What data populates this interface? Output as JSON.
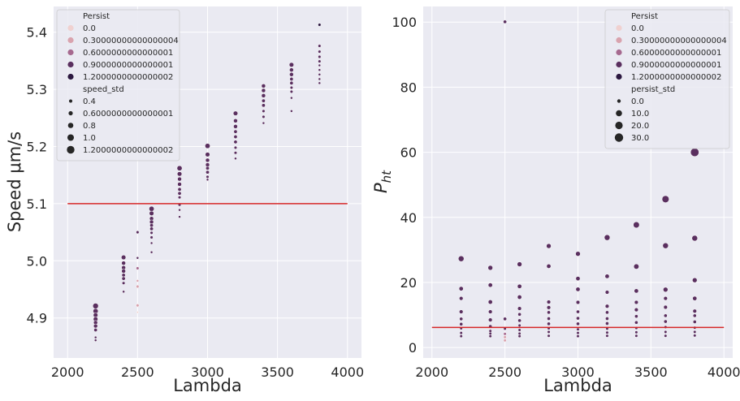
{
  "chart_data": [
    {
      "type": "scatter",
      "xlabel": "Lambda",
      "ylabel": "Speed μm/s",
      "xlim": [
        1900,
        4100
      ],
      "ylim": [
        4.83,
        5.445
      ],
      "xticks": [
        "2000",
        "2500",
        "3000",
        "3500",
        "4000"
      ],
      "yticks": [
        "4.9",
        "5.0",
        "5.1",
        "5.2",
        "5.3",
        "5.4"
      ],
      "xtick_values": [
        2000,
        2500,
        3000,
        3500,
        4000
      ],
      "ytick_values": [
        4.9,
        5.0,
        5.1,
        5.2,
        5.3,
        5.4
      ],
      "grid": true,
      "legend_position": "upper-left",
      "hue_title": "Persist",
      "hue_levels": [
        "0.0",
        "0.30000000000000004",
        "0.6000000000000001",
        "0.9000000000000001",
        "1.2000000000000002"
      ],
      "size_title": "speed_std",
      "size_levels": [
        "0.4",
        "0.6000000000000001",
        "0.8",
        "1.0",
        "1.2000000000000002"
      ],
      "reference_line": {
        "y": 5.1,
        "x_range": [
          2000,
          4000
        ],
        "color": "#d62728"
      },
      "groups": [
        {
          "x": 2200,
          "points": [
            [
              4.921,
              0.9,
              1.1
            ],
            [
              4.912,
              0.9,
              1.0
            ],
            [
              4.905,
              0.9,
              0.9
            ],
            [
              4.898,
              0.9,
              0.9
            ],
            [
              4.892,
              0.9,
              0.8
            ],
            [
              4.886,
              0.9,
              0.8
            ],
            [
              4.879,
              0.9,
              0.7
            ],
            [
              4.866,
              0.9,
              0.5
            ],
            [
              4.861,
              0.9,
              0.5
            ]
          ]
        },
        {
          "x": 2400,
          "points": [
            [
              5.006,
              0.9,
              0.9
            ],
            [
              4.996,
              0.9,
              0.8
            ],
            [
              4.988,
              0.9,
              0.8
            ],
            [
              4.982,
              0.9,
              0.8
            ],
            [
              4.975,
              0.9,
              0.7
            ],
            [
              4.969,
              0.9,
              0.7
            ],
            [
              4.961,
              0.9,
              0.6
            ],
            [
              4.946,
              0.9,
              0.5
            ]
          ]
        },
        {
          "x": 2500,
          "points": [
            [
              5.05,
              0.9,
              0.6
            ],
            [
              5.005,
              0.9,
              0.5
            ],
            [
              4.987,
              0.6,
              0.6
            ],
            [
              4.965,
              0.3,
              0.5
            ],
            [
              4.955,
              0.3,
              0.6
            ],
            [
              4.922,
              0.3,
              0.6
            ],
            [
              4.91,
              0.0,
              0.4
            ]
          ]
        },
        {
          "x": 2600,
          "points": [
            [
              5.091,
              0.9,
              1.0
            ],
            [
              5.083,
              0.9,
              0.9
            ],
            [
              5.074,
              0.9,
              0.8
            ],
            [
              5.068,
              0.9,
              0.8
            ],
            [
              5.062,
              0.9,
              0.7
            ],
            [
              5.056,
              0.9,
              0.7
            ],
            [
              5.049,
              0.9,
              0.6
            ],
            [
              5.041,
              0.9,
              0.6
            ],
            [
              5.031,
              0.9,
              0.5
            ],
            [
              5.015,
              0.9,
              0.5
            ]
          ]
        },
        {
          "x": 2800,
          "points": [
            [
              5.162,
              0.9,
              1.0
            ],
            [
              5.152,
              0.9,
              0.9
            ],
            [
              5.143,
              0.9,
              0.8
            ],
            [
              5.134,
              0.9,
              0.8
            ],
            [
              5.125,
              0.9,
              0.7
            ],
            [
              5.118,
              0.9,
              0.7
            ],
            [
              5.111,
              0.9,
              0.6
            ],
            [
              5.098,
              0.9,
              0.6
            ],
            [
              5.089,
              0.9,
              0.5
            ],
            [
              5.077,
              0.9,
              0.5
            ]
          ]
        },
        {
          "x": 3000,
          "points": [
            [
              5.201,
              0.9,
              1.0
            ],
            [
              5.186,
              0.9,
              0.9
            ],
            [
              5.176,
              0.9,
              0.8
            ],
            [
              5.168,
              0.9,
              0.8
            ],
            [
              5.162,
              0.9,
              0.7
            ],
            [
              5.155,
              0.9,
              0.7
            ],
            [
              5.147,
              0.9,
              0.6
            ],
            [
              5.142,
              0.9,
              0.5
            ]
          ]
        },
        {
          "x": 3200,
          "points": [
            [
              5.258,
              0.9,
              0.9
            ],
            [
              5.245,
              0.9,
              0.8
            ],
            [
              5.235,
              0.9,
              0.8
            ],
            [
              5.226,
              0.9,
              0.7
            ],
            [
              5.217,
              0.9,
              0.7
            ],
            [
              5.208,
              0.9,
              0.7
            ],
            [
              5.198,
              0.9,
              0.6
            ],
            [
              5.189,
              0.9,
              0.6
            ],
            [
              5.179,
              0.9,
              0.5
            ]
          ]
        },
        {
          "x": 3400,
          "points": [
            [
              5.306,
              0.9,
              0.8
            ],
            [
              5.298,
              0.9,
              0.8
            ],
            [
              5.289,
              0.9,
              0.8
            ],
            [
              5.28,
              0.9,
              0.7
            ],
            [
              5.272,
              0.9,
              0.7
            ],
            [
              5.262,
              0.9,
              0.6
            ],
            [
              5.252,
              0.9,
              0.6
            ],
            [
              5.241,
              0.9,
              0.5
            ]
          ]
        },
        {
          "x": 3600,
          "points": [
            [
              5.343,
              0.9,
              0.9
            ],
            [
              5.334,
              0.9,
              0.8
            ],
            [
              5.326,
              0.9,
              0.8
            ],
            [
              5.318,
              0.9,
              0.7
            ],
            [
              5.311,
              0.9,
              0.7
            ],
            [
              5.303,
              0.9,
              0.6
            ],
            [
              5.296,
              0.9,
              0.6
            ],
            [
              5.285,
              0.9,
              0.5
            ],
            [
              5.262,
              0.9,
              0.5
            ]
          ]
        },
        {
          "x": 3800,
          "points": [
            [
              5.413,
              1.2,
              0.6
            ],
            [
              5.376,
              0.9,
              0.6
            ],
            [
              5.366,
              0.9,
              0.6
            ],
            [
              5.357,
              0.9,
              0.6
            ],
            [
              5.349,
              0.9,
              0.6
            ],
            [
              5.342,
              0.9,
              0.5
            ],
            [
              5.334,
              0.9,
              0.5
            ],
            [
              5.326,
              0.9,
              0.5
            ],
            [
              5.318,
              0.9,
              0.5
            ],
            [
              5.311,
              0.9,
              0.5
            ]
          ]
        }
      ]
    },
    {
      "type": "scatter",
      "xlabel": "Lambda",
      "ylabel": "P_ht",
      "xlim": [
        1940,
        4060
      ],
      "ylim": [
        -3.2,
        104.8
      ],
      "xticks": [
        "2000",
        "2500",
        "3000",
        "3500",
        "4000"
      ],
      "yticks": [
        "0",
        "20",
        "40",
        "60",
        "80",
        "100"
      ],
      "xtick_values": [
        2000,
        2500,
        3000,
        3500,
        4000
      ],
      "ytick_values": [
        0,
        20,
        40,
        60,
        80,
        100
      ],
      "grid": true,
      "legend_position": "upper-right",
      "hue_title": "Persist",
      "hue_levels": [
        "0.0",
        "0.30000000000000004",
        "0.6000000000000001",
        "0.9000000000000001",
        "1.2000000000000002"
      ],
      "size_title": "persist_std",
      "size_levels": [
        "0.0",
        "10.0",
        "20.0",
        "30.0"
      ],
      "reference_line": {
        "y": 6.2,
        "x_range": [
          2000,
          4000
        ],
        "color": "#d62728"
      },
      "groups": [
        {
          "x": 2200,
          "points": [
            [
              27.3,
              0.9,
              6
            ],
            [
              18.1,
              0.9,
              3
            ],
            [
              15.1,
              0.9,
              2
            ],
            [
              11.0,
              0.9,
              2
            ],
            [
              8.8,
              0.9,
              1
            ],
            [
              7.2,
              0.9,
              1
            ],
            [
              5.9,
              0.9,
              0
            ],
            [
              4.5,
              0.9,
              0
            ],
            [
              3.5,
              0.9,
              0
            ]
          ]
        },
        {
          "x": 2400,
          "points": [
            [
              24.5,
              0.9,
              4
            ],
            [
              19.2,
              0.9,
              3
            ],
            [
              14.0,
              0.9,
              3
            ],
            [
              11.0,
              0.9,
              2
            ],
            [
              8.5,
              0.9,
              2
            ],
            [
              6.5,
              0.9,
              1
            ],
            [
              5.1,
              0.9,
              0
            ],
            [
              4.3,
              0.9,
              0
            ],
            [
              3.5,
              0.9,
              0
            ]
          ]
        },
        {
          "x": 2500,
          "points": [
            [
              100.1,
              0.9,
              1
            ],
            [
              8.8,
              0.9,
              1
            ],
            [
              5.8,
              0.9,
              0
            ],
            [
              4.2,
              0.6,
              0
            ],
            [
              3.2,
              0.3,
              0
            ],
            [
              2.2,
              0.3,
              0
            ]
          ]
        },
        {
          "x": 2600,
          "points": [
            [
              25.6,
              0.9,
              4
            ],
            [
              18.8,
              0.9,
              3
            ],
            [
              15.5,
              0.9,
              3
            ],
            [
              12.0,
              0.9,
              2
            ],
            [
              10.2,
              0.9,
              1
            ],
            [
              8.3,
              0.9,
              1
            ],
            [
              6.8,
              0.9,
              0
            ],
            [
              5.4,
              0.9,
              0
            ],
            [
              4.3,
              0.9,
              0
            ],
            [
              3.5,
              0.9,
              0
            ]
          ]
        },
        {
          "x": 2800,
          "points": [
            [
              31.2,
              0.9,
              4
            ],
            [
              25.0,
              0.9,
              3
            ],
            [
              14.0,
              0.9,
              2
            ],
            [
              12.3,
              0.9,
              2
            ],
            [
              10.8,
              0.9,
              1
            ],
            [
              8.9,
              0.9,
              1
            ],
            [
              7.3,
              0.9,
              1
            ],
            [
              5.9,
              0.9,
              0
            ],
            [
              4.8,
              0.9,
              0
            ],
            [
              3.6,
              0.9,
              0
            ]
          ]
        },
        {
          "x": 3000,
          "points": [
            [
              28.8,
              0.9,
              4
            ],
            [
              21.2,
              0.9,
              3
            ],
            [
              17.9,
              0.9,
              3
            ],
            [
              13.9,
              0.9,
              2
            ],
            [
              11.0,
              0.9,
              1
            ],
            [
              9.0,
              0.9,
              1
            ],
            [
              7.3,
              0.9,
              1
            ],
            [
              5.6,
              0.9,
              0
            ],
            [
              4.5,
              0.9,
              0
            ],
            [
              3.5,
              0.9,
              0
            ]
          ]
        },
        {
          "x": 3200,
          "points": [
            [
              33.8,
              0.9,
              6
            ],
            [
              21.9,
              0.9,
              3
            ],
            [
              17.0,
              0.9,
              2
            ],
            [
              12.7,
              0.9,
              2
            ],
            [
              10.8,
              0.9,
              1
            ],
            [
              8.9,
              0.9,
              1
            ],
            [
              7.4,
              0.9,
              1
            ],
            [
              5.8,
              0.9,
              0
            ],
            [
              4.6,
              0.9,
              0
            ],
            [
              3.6,
              0.9,
              0
            ]
          ]
        },
        {
          "x": 3400,
          "points": [
            [
              37.7,
              0.9,
              7
            ],
            [
              24.9,
              0.9,
              5
            ],
            [
              17.4,
              0.9,
              3
            ],
            [
              13.9,
              0.9,
              2
            ],
            [
              11.6,
              0.9,
              2
            ],
            [
              9.6,
              0.9,
              1
            ],
            [
              7.7,
              0.9,
              1
            ],
            [
              6.0,
              0.9,
              0
            ],
            [
              4.7,
              0.9,
              0
            ],
            [
              3.6,
              0.9,
              0
            ]
          ]
        },
        {
          "x": 3600,
          "points": [
            [
              45.6,
              0.9,
              9
            ],
            [
              31.3,
              0.9,
              6
            ],
            [
              17.8,
              0.9,
              4
            ],
            [
              15.1,
              0.9,
              2
            ],
            [
              12.4,
              0.9,
              2
            ],
            [
              9.8,
              0.9,
              1
            ],
            [
              8.0,
              0.9,
              1
            ],
            [
              6.3,
              0.9,
              0
            ],
            [
              4.8,
              0.9,
              0
            ],
            [
              3.6,
              0.9,
              0
            ]
          ]
        },
        {
          "x": 3800,
          "points": [
            [
              60.0,
              0.9,
              12
            ],
            [
              33.6,
              0.9,
              6
            ],
            [
              20.7,
              0.9,
              4
            ],
            [
              15.1,
              0.9,
              3
            ],
            [
              11.2,
              0.9,
              2
            ],
            [
              9.8,
              0.9,
              1
            ],
            [
              7.9,
              0.9,
              1
            ],
            [
              6.1,
              0.9,
              0
            ],
            [
              4.8,
              0.9,
              0
            ],
            [
              3.7,
              0.9,
              0
            ]
          ]
        }
      ]
    }
  ],
  "colors": {
    "axes_bg": "#eaeaf2",
    "grid": "#ffffff",
    "ref_line": "#d62728",
    "hue_palette": [
      "#f0d1d0",
      "#d9a3ae",
      "#a6698f",
      "#5a2f5f",
      "#2c1840"
    ]
  }
}
